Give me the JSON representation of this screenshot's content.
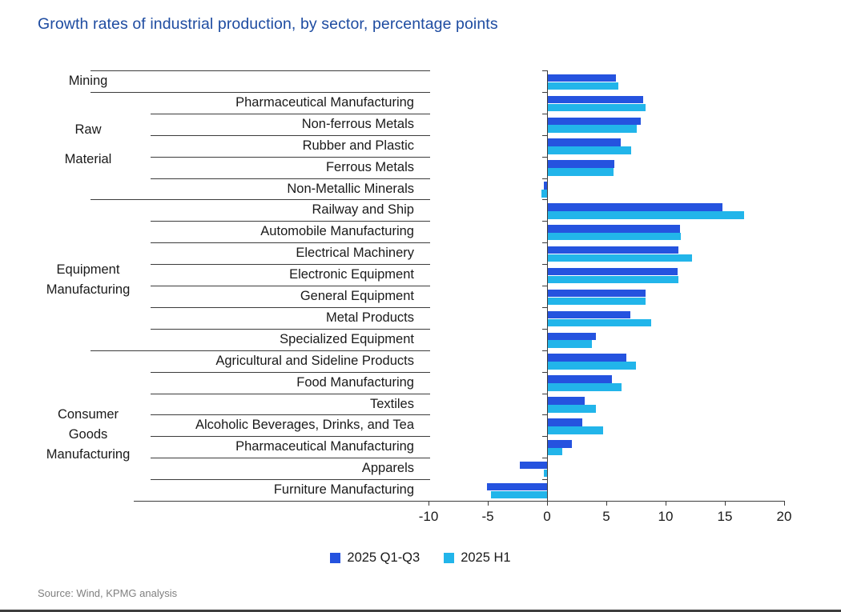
{
  "title": "Growth rates of industrial production, by sector, percentage points",
  "source": "Source: Wind, KPMG analysis",
  "colors": {
    "title": "#1E4CA1",
    "series_q1q3": "#2553DF",
    "series_h1": "#22B5EA",
    "axis": "#3c3c3c",
    "source_text": "#808080"
  },
  "legend": [
    {
      "label": "2025 Q1-Q3",
      "color": "#2553DF"
    },
    {
      "label": "2025 H1",
      "color": "#22B5EA"
    }
  ],
  "chart_data": {
    "type": "bar",
    "orientation": "horizontal",
    "title": "Growth rates of industrial production, by sector, percentage points",
    "unit": "percentage points",
    "xlim": [
      -10,
      20
    ],
    "x_ticks": [
      -10,
      -5,
      0,
      5,
      10,
      15,
      20
    ],
    "grid": false,
    "legend_position": "bottom",
    "series_names": [
      "2025 Q1-Q3",
      "2025 H1"
    ],
    "groups": [
      {
        "label_lines": [
          "Mining"
        ],
        "items": [
          {
            "label": "",
            "values": [
              5.8,
              6.0
            ]
          }
        ]
      },
      {
        "label_lines": [
          "Raw",
          "Material"
        ],
        "items": [
          {
            "label": "Pharmaceutical Manufacturing",
            "values": [
              8.1,
              8.3
            ]
          },
          {
            "label": "Non-ferrous Metals",
            "values": [
              7.9,
              7.6
            ]
          },
          {
            "label": "Rubber and Plastic",
            "values": [
              6.2,
              7.1
            ]
          },
          {
            "label": "Ferrous Metals",
            "values": [
              5.7,
              5.6
            ]
          },
          {
            "label": "Non-Metallic Minerals",
            "values": [
              -0.3,
              -0.5
            ]
          }
        ]
      },
      {
        "label_lines": [
          "Equipment",
          "Manufacturing"
        ],
        "items": [
          {
            "label": "Railway and Ship",
            "values": [
              14.8,
              16.6
            ]
          },
          {
            "label": "Automobile Manufacturing",
            "values": [
              11.2,
              11.3
            ]
          },
          {
            "label": "Electrical Machinery",
            "values": [
              11.1,
              12.2
            ]
          },
          {
            "label": "Electronic Equipment",
            "values": [
              11.0,
              11.1
            ]
          },
          {
            "label": "General Equipment",
            "values": [
              8.3,
              8.3
            ]
          },
          {
            "label": "Metal Products",
            "values": [
              7.0,
              8.8
            ]
          },
          {
            "label": "Specialized Equipment",
            "values": [
              4.1,
              3.8
            ]
          }
        ]
      },
      {
        "label_lines": [
          "Consumer",
          "Goods",
          "Manufacturing"
        ],
        "items": [
          {
            "label": "Agricultural and Sideline Products",
            "values": [
              6.7,
              7.5
            ]
          },
          {
            "label": "Food Manufacturing",
            "values": [
              5.5,
              6.3
            ]
          },
          {
            "label": "Textiles",
            "values": [
              3.2,
              4.1
            ]
          },
          {
            "label": "Alcoholic Beverages, Drinks, and Tea",
            "values": [
              3.0,
              4.7
            ]
          },
          {
            "label": "Pharmaceutical Manufacturing",
            "values": [
              2.1,
              1.3
            ]
          },
          {
            "label": "Apparels",
            "values": [
              -2.3,
              -0.3
            ]
          },
          {
            "label": "Furniture Manufacturing",
            "values": [
              -5.1,
              -4.7
            ]
          }
        ]
      }
    ]
  }
}
